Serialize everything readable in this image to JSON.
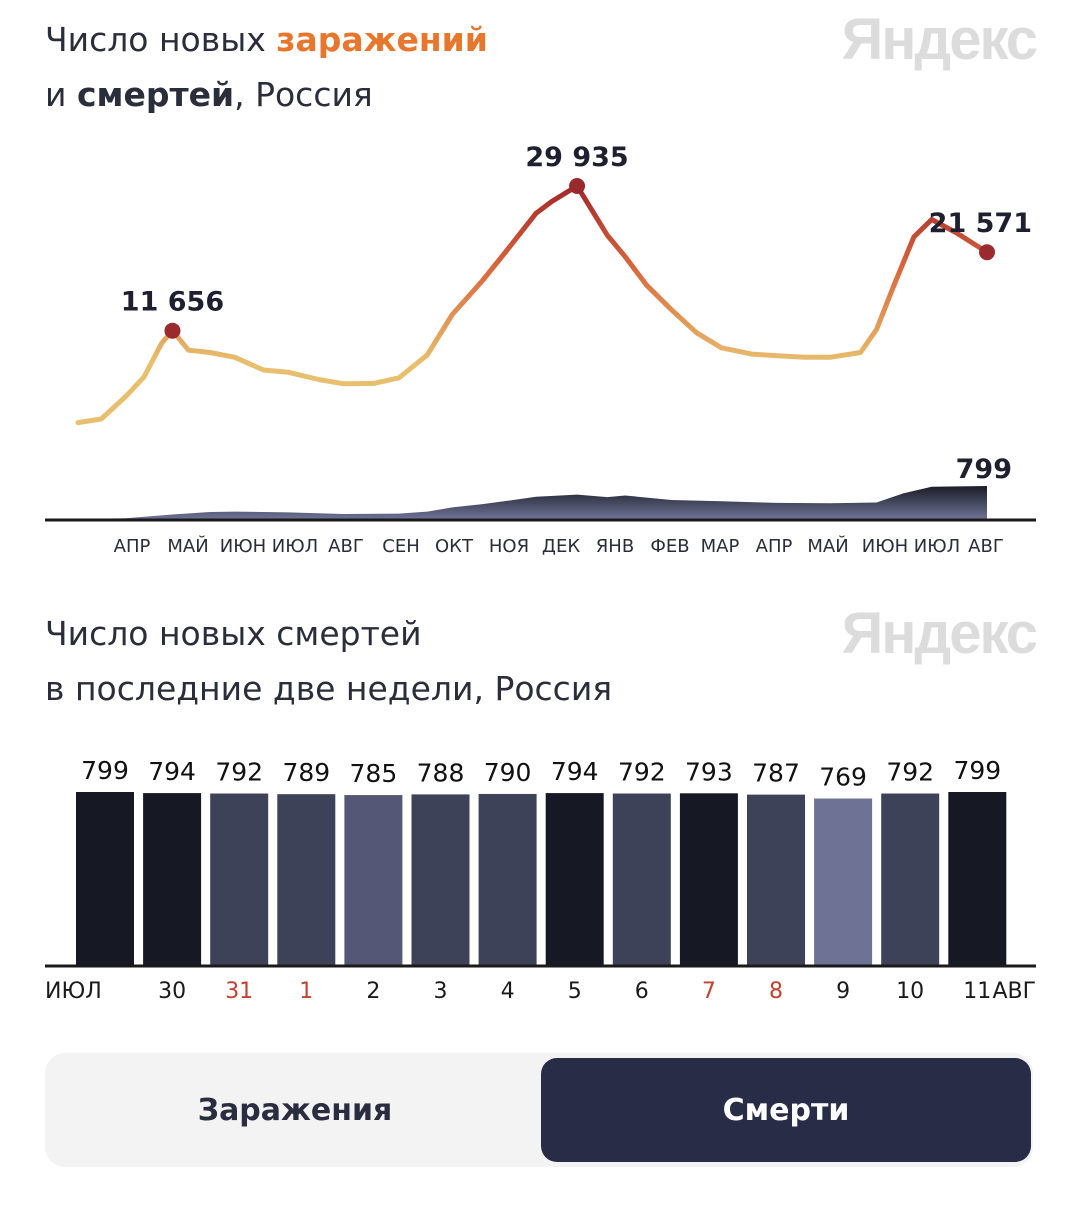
{
  "chart1": {
    "title_part1": "Число новых ",
    "title_infections": "заражений",
    "title_part2": "и ",
    "title_deaths": "смертей",
    "title_part3": ", Россия",
    "logo": "Яндекс",
    "colors": {
      "infections_accent": "#e8772e",
      "line_high": "#a3262a",
      "line_mid": "#d9683c",
      "line_low": "#e8bf6e",
      "marker": "#9b2a2e",
      "deaths_dark": "#15171f",
      "deaths_light": "#6e7396"
    },
    "month_labels": [
      "АПР",
      "МАЙ",
      "ИЮН",
      "ИЮЛ",
      "АВГ",
      "СЕН",
      "ОКТ",
      "НОЯ",
      "ДЕК",
      "ЯНВ",
      "ФЕВ",
      "МАР",
      "АПР",
      "МАЙ",
      "ИЮН",
      "ИЮЛ",
      "АВГ"
    ],
    "annotations": [
      {
        "label": "11 656",
        "date": "2020-05-11",
        "value": 11656
      },
      {
        "label": "29 935",
        "date": "2020-12-24",
        "value": 29935
      },
      {
        "label": "21 571",
        "date": "2021-08-11",
        "value": 21571
      }
    ],
    "deaths_annotation": {
      "label": "799",
      "date": "2021-08-11",
      "value": 799
    }
  },
  "chart_data": [
    {
      "type": "line",
      "title": "Число новых заражений и смертей, Россия",
      "x_range": [
        "2020-03-19",
        "2021-08-11"
      ],
      "series": [
        {
          "name": "заражений",
          "type": "line",
          "points": [
            [
              "2020-03-19",
              50
            ],
            [
              "2020-04-01",
              500
            ],
            [
              "2020-04-15",
              3400
            ],
            [
              "2020-04-25",
              5800
            ],
            [
              "2020-05-05",
              10100
            ],
            [
              "2020-05-11",
              11656
            ],
            [
              "2020-05-20",
              9200
            ],
            [
              "2020-06-01",
              8900
            ],
            [
              "2020-06-15",
              8300
            ],
            [
              "2020-07-01",
              6700
            ],
            [
              "2020-07-15",
              6400
            ],
            [
              "2020-08-01",
              5500
            ],
            [
              "2020-08-15",
              4950
            ],
            [
              "2020-09-01",
              5000
            ],
            [
              "2020-09-15",
              5700
            ],
            [
              "2020-10-01",
              8600
            ],
            [
              "2020-10-15",
              13700
            ],
            [
              "2020-11-01",
              18000
            ],
            [
              "2020-11-15",
              21900
            ],
            [
              "2020-12-01",
              26500
            ],
            [
              "2020-12-10",
              28000
            ],
            [
              "2020-12-24",
              29935
            ],
            [
              "2021-01-01",
              27000
            ],
            [
              "2021-01-10",
              23700
            ],
            [
              "2021-01-20",
              21000
            ],
            [
              "2021-02-01",
              17400
            ],
            [
              "2021-02-15",
              14300
            ],
            [
              "2021-03-01",
              11400
            ],
            [
              "2021-03-15",
              9500
            ],
            [
              "2021-04-01",
              8700
            ],
            [
              "2021-04-15",
              8500
            ],
            [
              "2021-05-01",
              8300
            ],
            [
              "2021-05-15",
              8300
            ],
            [
              "2021-06-01",
              8900
            ],
            [
              "2021-06-10",
              11800
            ],
            [
              "2021-06-20",
              17500
            ],
            [
              "2021-07-01",
              23500
            ],
            [
              "2021-07-11",
              25700
            ],
            [
              "2021-07-25",
              24000
            ],
            [
              "2021-08-11",
              21571
            ]
          ]
        },
        {
          "name": "смертей",
          "type": "area",
          "points": [
            [
              "2020-03-19",
              0
            ],
            [
              "2020-04-15",
              20
            ],
            [
              "2020-05-11",
              110
            ],
            [
              "2020-06-01",
              170
            ],
            [
              "2020-06-15",
              180
            ],
            [
              "2020-07-15",
              160
            ],
            [
              "2020-08-15",
              120
            ],
            [
              "2020-09-15",
              130
            ],
            [
              "2020-10-01",
              180
            ],
            [
              "2020-10-15",
              280
            ],
            [
              "2020-11-01",
              360
            ],
            [
              "2020-11-15",
              440
            ],
            [
              "2020-12-01",
              540
            ],
            [
              "2020-12-24",
              590
            ],
            [
              "2021-01-10",
              530
            ],
            [
              "2021-01-20",
              570
            ],
            [
              "2021-02-15",
              460
            ],
            [
              "2021-03-15",
              430
            ],
            [
              "2021-04-15",
              390
            ],
            [
              "2021-05-15",
              380
            ],
            [
              "2021-06-10",
              400
            ],
            [
              "2021-06-25",
              620
            ],
            [
              "2021-07-11",
              780
            ],
            [
              "2021-08-11",
              799
            ]
          ]
        }
      ]
    },
    {
      "type": "bar",
      "title": "Число новых смертей в последние две недели, Россия",
      "categories": [
        "ИЮЛ",
        "30",
        "31",
        "1",
        "2",
        "3",
        "4",
        "5",
        "6",
        "7",
        "8",
        "9",
        "10",
        "11"
      ],
      "values": [
        799,
        794,
        792,
        789,
        785,
        788,
        790,
        794,
        792,
        793,
        787,
        769,
        792,
        799
      ],
      "value_labels": [
        "799",
        "794",
        "792",
        "789",
        "785",
        "788",
        "790",
        "794",
        "792",
        "793",
        "787",
        "769",
        "792",
        "799"
      ],
      "weekend": [
        false,
        false,
        true,
        true,
        false,
        false,
        false,
        false,
        false,
        true,
        true,
        false,
        false,
        false
      ],
      "end_label": "АВГ",
      "ylim": [
        0,
        799
      ]
    }
  ],
  "chart2": {
    "title_line1": "Число новых смертей",
    "title_line2": "в последние две недели, Россия",
    "logo": "Яндекс",
    "weekend_color": "#c4412f",
    "bar_colors": {
      "darkest": "#161824",
      "dark": "#3e4259",
      "mid": "#545775",
      "light": "#6e7396"
    }
  },
  "toggle": {
    "infections_label": "Заражения",
    "deaths_label": "Смерти",
    "active": "deaths"
  }
}
